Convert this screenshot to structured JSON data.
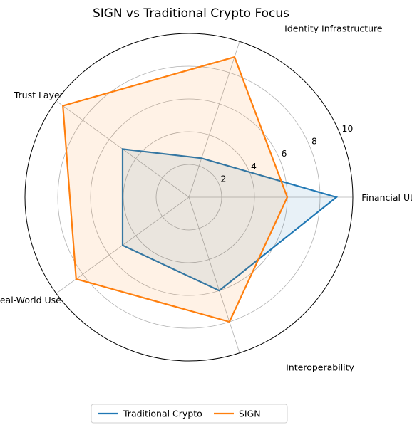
{
  "chart_data": {
    "type": "radar",
    "title": "SIGN vs Traditional Crypto Focus",
    "categories": [
      "Financial Utility",
      "Identity Infrastructure",
      "Trust Layer",
      "Real-World Use",
      "Interoperability"
    ],
    "rlim": [
      0,
      10
    ],
    "rticks": [
      2,
      4,
      6,
      8,
      10
    ],
    "grid": true,
    "legend_position": "bottom-center",
    "series": [
      {
        "name": "Traditional Crypto",
        "color": "#1f77b4",
        "values": [
          9,
          2.5,
          5,
          5,
          6
        ]
      },
      {
        "name": "SIGN",
        "color": "#ff7f0e",
        "values": [
          6,
          9,
          9.5,
          8.5,
          8
        ]
      }
    ]
  }
}
